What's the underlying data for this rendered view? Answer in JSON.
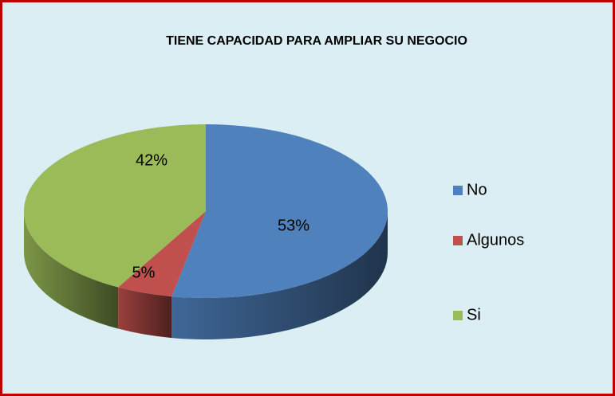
{
  "chart_data": {
    "type": "pie",
    "title": "TIENE CAPACIDAD PARA AMPLIAR SU NEGOCIO",
    "categories": [
      "No",
      "Algunos",
      "Si"
    ],
    "values": [
      53,
      5,
      42
    ],
    "value_labels": [
      "53%",
      "5%",
      "42%"
    ],
    "colors": [
      "#4f81bd",
      "#c0504d",
      "#9bbb59"
    ],
    "legend": "right"
  }
}
